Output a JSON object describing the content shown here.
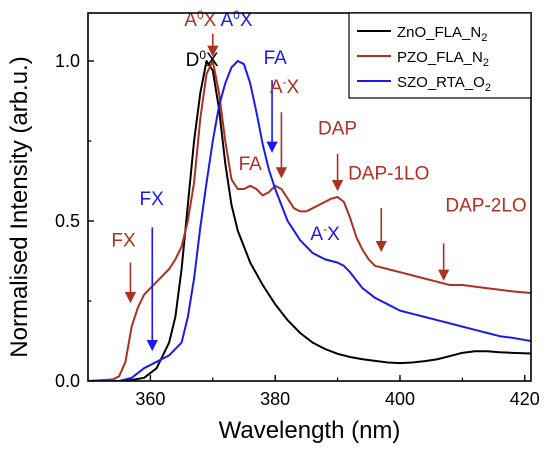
{
  "chart_data": {
    "type": "line",
    "xlabel": "Wavelength (nm)",
    "ylabel": "Normalised Intensity (arb.u.)",
    "xlim": [
      350,
      421
    ],
    "ylim": [
      0,
      1.15
    ],
    "x_ticks": [
      {
        "value": 360,
        "label": "360"
      },
      {
        "value": 380,
        "label": "380"
      },
      {
        "value": 400,
        "label": "400"
      },
      {
        "value": 420,
        "label": "420"
      }
    ],
    "y_ticks": [
      {
        "value": 0.0,
        "label": "0.0"
      },
      {
        "value": 0.5,
        "label": "0.5"
      },
      {
        "value": 1.0,
        "label": "1.0"
      }
    ],
    "legend_position": "top-right",
    "series": [
      {
        "name": "ZnO_FLA_N",
        "name_sub": "2",
        "color": "#000000",
        "points": [
          [
            350,
            0
          ],
          [
            355,
            0
          ],
          [
            357,
            0.003
          ],
          [
            359,
            0.01
          ],
          [
            361,
            0.04
          ],
          [
            363,
            0.12
          ],
          [
            364,
            0.2
          ],
          [
            365,
            0.35
          ],
          [
            366,
            0.55
          ],
          [
            367,
            0.75
          ],
          [
            368,
            0.9
          ],
          [
            369,
            1.0
          ],
          [
            370,
            0.97
          ],
          [
            371,
            0.85
          ],
          [
            372,
            0.68
          ],
          [
            373,
            0.55
          ],
          [
            374,
            0.47
          ],
          [
            375,
            0.42
          ],
          [
            376,
            0.37
          ],
          [
            378,
            0.3
          ],
          [
            380,
            0.24
          ],
          [
            382,
            0.19
          ],
          [
            384,
            0.15
          ],
          [
            386,
            0.12
          ],
          [
            388,
            0.1
          ],
          [
            390,
            0.085
          ],
          [
            392,
            0.075
          ],
          [
            394,
            0.068
          ],
          [
            396,
            0.063
          ],
          [
            398,
            0.058
          ],
          [
            400,
            0.056
          ],
          [
            402,
            0.058
          ],
          [
            404,
            0.062
          ],
          [
            406,
            0.068
          ],
          [
            408,
            0.078
          ],
          [
            410,
            0.088
          ],
          [
            412,
            0.093
          ],
          [
            414,
            0.093
          ],
          [
            416,
            0.09
          ],
          [
            418,
            0.088
          ],
          [
            421,
            0.086
          ]
        ]
      },
      {
        "name": "PZO_FLA_N",
        "name_sub": "2",
        "color": "#b03020",
        "points": [
          [
            350,
            0
          ],
          [
            354,
            0.005
          ],
          [
            355,
            0.015
          ],
          [
            356,
            0.06
          ],
          [
            357,
            0.17
          ],
          [
            358,
            0.23
          ],
          [
            359,
            0.27
          ],
          [
            360,
            0.29
          ],
          [
            361,
            0.31
          ],
          [
            362,
            0.33
          ],
          [
            363,
            0.35
          ],
          [
            364,
            0.38
          ],
          [
            365,
            0.42
          ],
          [
            366,
            0.5
          ],
          [
            367,
            0.62
          ],
          [
            368,
            0.82
          ],
          [
            369,
            0.96
          ],
          [
            370,
            1.0
          ],
          [
            371,
            0.9
          ],
          [
            372,
            0.75
          ],
          [
            373,
            0.63
          ],
          [
            374,
            0.6
          ],
          [
            375,
            0.6
          ],
          [
            376,
            0.61
          ],
          [
            377,
            0.6
          ],
          [
            378,
            0.58
          ],
          [
            379,
            0.59
          ],
          [
            380,
            0.61
          ],
          [
            381,
            0.6
          ],
          [
            382,
            0.57
          ],
          [
            383,
            0.54
          ],
          [
            384,
            0.53
          ],
          [
            385,
            0.53
          ],
          [
            386,
            0.54
          ],
          [
            387,
            0.55
          ],
          [
            388,
            0.56
          ],
          [
            389,
            0.57
          ],
          [
            390,
            0.575
          ],
          [
            391,
            0.56
          ],
          [
            392,
            0.51
          ],
          [
            393,
            0.45
          ],
          [
            394,
            0.41
          ],
          [
            395,
            0.38
          ],
          [
            396,
            0.36
          ],
          [
            398,
            0.35
          ],
          [
            400,
            0.34
          ],
          [
            402,
            0.33
          ],
          [
            404,
            0.32
          ],
          [
            406,
            0.31
          ],
          [
            408,
            0.3
          ],
          [
            410,
            0.3
          ],
          [
            412,
            0.295
          ],
          [
            414,
            0.29
          ],
          [
            416,
            0.285
          ],
          [
            418,
            0.28
          ],
          [
            421,
            0.275
          ]
        ]
      },
      {
        "name": "SZO_RTA_O",
        "name_sub": "2",
        "color": "#1a1aee",
        "points": [
          [
            350,
            0
          ],
          [
            355,
            0
          ],
          [
            357,
            0.01
          ],
          [
            359,
            0.04
          ],
          [
            361,
            0.06
          ],
          [
            363,
            0.08
          ],
          [
            365,
            0.12
          ],
          [
            366,
            0.2
          ],
          [
            367,
            0.32
          ],
          [
            368,
            0.48
          ],
          [
            369,
            0.62
          ],
          [
            370,
            0.75
          ],
          [
            371,
            0.86
          ],
          [
            372,
            0.93
          ],
          [
            373,
            0.98
          ],
          [
            374,
            1.0
          ],
          [
            375,
            0.99
          ],
          [
            376,
            0.93
          ],
          [
            377,
            0.84
          ],
          [
            378,
            0.74
          ],
          [
            379,
            0.66
          ],
          [
            380,
            0.6
          ],
          [
            381,
            0.55
          ],
          [
            382,
            0.5
          ],
          [
            383,
            0.47
          ],
          [
            384,
            0.44
          ],
          [
            385,
            0.42
          ],
          [
            386,
            0.4
          ],
          [
            387,
            0.39
          ],
          [
            388,
            0.38
          ],
          [
            390,
            0.37
          ],
          [
            391,
            0.36
          ],
          [
            392,
            0.34
          ],
          [
            394,
            0.29
          ],
          [
            396,
            0.26
          ],
          [
            398,
            0.24
          ],
          [
            400,
            0.22
          ],
          [
            402,
            0.21
          ],
          [
            404,
            0.2
          ],
          [
            406,
            0.19
          ],
          [
            408,
            0.18
          ],
          [
            410,
            0.17
          ],
          [
            412,
            0.16
          ],
          [
            414,
            0.15
          ],
          [
            416,
            0.14
          ],
          [
            418,
            0.135
          ],
          [
            421,
            0.125
          ]
        ]
      }
    ],
    "annotations": [
      {
        "text": "D",
        "sup": "0",
        "tail": "X",
        "color": "#000000",
        "x": 368.3,
        "y": 0.985,
        "arrow": false
      },
      {
        "text": "A",
        "sup": "0",
        "tail": "X",
        "color": "#b03020",
        "x": 368.0,
        "y": 1.11,
        "arrow": true,
        "arrow_from_y": 1.085,
        "arrow_to_y": 1.02,
        "arrow_x": 370
      },
      {
        "text": "A",
        "sup": "0",
        "tail": "X",
        "color": "#1a1aee",
        "x": 373.8,
        "y": 1.11,
        "arrow": false
      },
      {
        "text": "FA",
        "sup": "",
        "tail": "",
        "color": "#1a1aee",
        "x": 380.0,
        "y": 0.99,
        "arrow": true,
        "arrow_from_y": 0.94,
        "arrow_to_y": 0.72,
        "arrow_x": 379.5
      },
      {
        "text": "A",
        "sup": "-",
        "tail": "X",
        "color": "#b03020",
        "x": 381.5,
        "y": 0.9,
        "arrow": true,
        "arrow_from_y": 0.84,
        "arrow_to_y": 0.64,
        "arrow_x": 381
      },
      {
        "text": "FA",
        "sup": "",
        "tail": "",
        "color": "#b03020",
        "x": 376.0,
        "y": 0.66,
        "arrow": false
      },
      {
        "text": "DAP",
        "sup": "",
        "tail": "",
        "color": "#b03020",
        "x": 390.0,
        "y": 0.77,
        "arrow": true,
        "arrow_from_y": 0.71,
        "arrow_to_y": 0.6,
        "arrow_x": 390
      },
      {
        "text": "DAP-1LO",
        "sup": "",
        "tail": "",
        "color": "#b03020",
        "x": 398.2,
        "y": 0.63,
        "arrow": true,
        "arrow_from_y": 0.54,
        "arrow_to_y": 0.41,
        "arrow_x": 397
      },
      {
        "text": "DAP-2LO",
        "sup": "",
        "tail": "",
        "color": "#b03020",
        "x": 413.8,
        "y": 0.53,
        "arrow": true,
        "arrow_from_y": 0.43,
        "arrow_to_y": 0.32,
        "arrow_x": 407
      },
      {
        "text": "A",
        "sup": "-",
        "tail": "X",
        "color": "#1a1aee",
        "x": 388.0,
        "y": 0.44,
        "arrow": false
      },
      {
        "text": "FX",
        "sup": "",
        "tail": "",
        "color": "#1a1aee",
        "x": 360.2,
        "y": 0.55,
        "arrow": true,
        "arrow_from_y": 0.48,
        "arrow_to_y": 0.1,
        "arrow_x": 360.3
      },
      {
        "text": "FX",
        "sup": "",
        "tail": "",
        "color": "#b03020",
        "x": 355.7,
        "y": 0.42,
        "arrow": true,
        "arrow_from_y": 0.37,
        "arrow_to_y": 0.25,
        "arrow_x": 356.8
      }
    ]
  }
}
